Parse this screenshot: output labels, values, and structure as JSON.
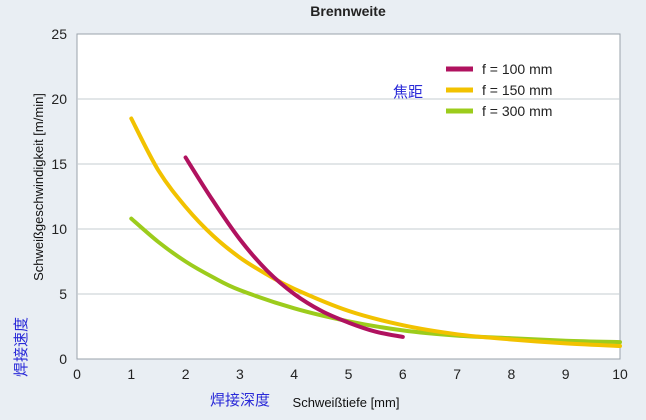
{
  "chart_data": {
    "type": "line",
    "title": "Brennweite",
    "xlabel": "Schweißtiefe [mm]",
    "ylabel": "Schweißgeschwindigkeit [m/min]",
    "xlabel_annotation": "焊接深度",
    "ylabel_annotation": "焊接速度",
    "legend_annotation": "焦距",
    "xlim": [
      0,
      10
    ],
    "ylim": [
      0,
      25
    ],
    "xticks": [
      0,
      1,
      2,
      3,
      4,
      5,
      6,
      7,
      8,
      9,
      10
    ],
    "yticks": [
      0,
      5,
      10,
      15,
      20,
      25
    ],
    "grid": "horizontal",
    "legend_position": "top-right",
    "series": [
      {
        "name": "f = 100 mm",
        "color": "#b0125f",
        "x": [
          2,
          2.5,
          3,
          3.5,
          4,
          4.5,
          5,
          5.5,
          6
        ],
        "y": [
          15.5,
          12.2,
          9.2,
          6.8,
          5.0,
          3.7,
          2.8,
          2.1,
          1.7
        ]
      },
      {
        "name": "f = 150 mm",
        "color": "#f2c200",
        "x": [
          1,
          1.5,
          2,
          2.5,
          3,
          3.5,
          4,
          5,
          6,
          7,
          8,
          9,
          10
        ],
        "y": [
          18.5,
          14.5,
          11.7,
          9.5,
          7.8,
          6.5,
          5.4,
          3.7,
          2.6,
          1.9,
          1.5,
          1.2,
          1.0
        ]
      },
      {
        "name": "f = 300 mm",
        "color": "#9ccc1c",
        "x": [
          1,
          1.5,
          2,
          2.5,
          3,
          4,
          5,
          6,
          7,
          8,
          9,
          10
        ],
        "y": [
          10.8,
          9.0,
          7.5,
          6.3,
          5.3,
          3.9,
          2.9,
          2.2,
          1.8,
          1.6,
          1.4,
          1.3
        ]
      }
    ]
  }
}
